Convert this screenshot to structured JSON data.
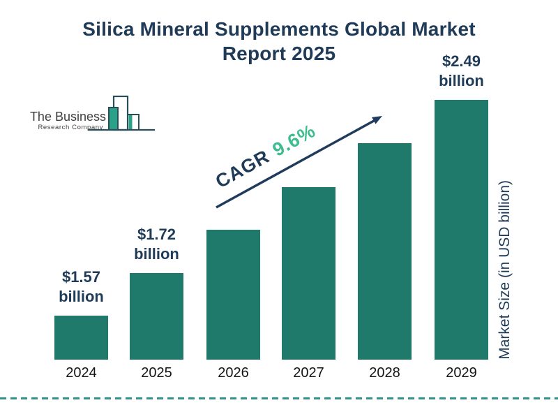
{
  "title": {
    "line1": "Silica Mineral Supplements Global Market",
    "line2": "Report 2025"
  },
  "logo": {
    "name_line1": "The Business",
    "name_line2": "Research Company"
  },
  "cagr": {
    "label": "CAGR",
    "value": "9.6%"
  },
  "y_axis_label": "Market Size (in USD billion)",
  "colors": {
    "bar": "#1f7a6b",
    "accent_navy": "#203b5c",
    "accent_green": "#3dbc8e",
    "dashed_line": "#2e958c",
    "logo_teal": "#2aa188",
    "title_navy": "#1f3b57"
  },
  "chart_data": {
    "type": "bar",
    "title": "Silica Mineral Supplements Global Market Report 2025",
    "categories": [
      "2024",
      "2025",
      "2026",
      "2027",
      "2028",
      "2029"
    ],
    "values": [
      1.57,
      1.72,
      1.89,
      2.07,
      2.26,
      2.49
    ],
    "unit": "USD billion",
    "xlabel": "",
    "ylabel": "Market Size (in USD billion)",
    "grid": false,
    "legend": false,
    "bar_color": "#1f7a6b",
    "value_labels": [
      {
        "index": 0,
        "line1": "$1.57",
        "line2": "billion"
      },
      {
        "index": 1,
        "line1": "$1.72",
        "line2": "billion"
      },
      {
        "index": 5,
        "line1": "$2.49",
        "line2": "billion"
      }
    ],
    "annotation": "CAGR 9.6%"
  }
}
